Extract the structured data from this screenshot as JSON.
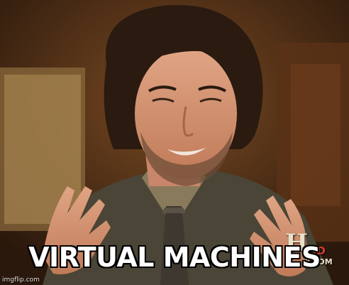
{
  "meme": {
    "caption": "VIRTUAL MACHINES",
    "watermark": "imgflip.com"
  },
  "channel_logo": {
    "letter": "H",
    "badge": "HD",
    "url": "Y.COM"
  },
  "colors": {
    "caption_text": "#ffffff",
    "caption_outline": "#000000",
    "background": "#3d2412",
    "suit": "#4a4536",
    "shirt": "#8a7a5c",
    "skin": "#d99a78",
    "hair": "#2a1a10"
  }
}
